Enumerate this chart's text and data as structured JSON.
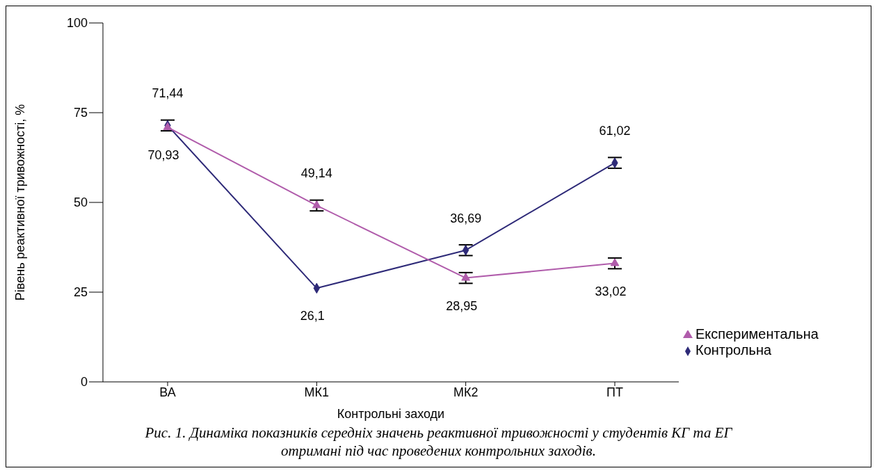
{
  "chart_data": {
    "type": "line",
    "xlabel": "Контрольні заходи",
    "ylabel": "Рівень реактивної тривожності, %",
    "categories": [
      "ВА",
      "МК1",
      "МК2",
      "ПТ"
    ],
    "series": [
      {
        "name": "Контрольна",
        "color": "#2e2a78",
        "marker": "diamond",
        "values": [
          71.44,
          26.1,
          36.69,
          61.02
        ],
        "value_labels": [
          "71,44",
          "26,1",
          "36,69",
          "61,02"
        ],
        "errors": [
          1.5,
          null,
          1.5,
          1.5
        ]
      },
      {
        "name": "Експериментальна",
        "color": "#b05cab",
        "marker": "triangle",
        "values": [
          70.93,
          49.14,
          28.95,
          33.02
        ],
        "value_labels": [
          "70,93",
          "49,14",
          "28,95",
          "33,02"
        ],
        "errors": [
          null,
          1.5,
          1.5,
          1.5
        ]
      }
    ],
    "ylim": [
      0,
      100
    ],
    "yticks": [
      0,
      25,
      50,
      75,
      100
    ],
    "grid": false,
    "legend": "right",
    "data_labels": true,
    "annotations": [
      "Рис. 1. Динаміка показників середніх значень реактивної тривожності у студентів КГ та ЕГ отримані під час проведених контрольних заходів."
    ]
  }
}
